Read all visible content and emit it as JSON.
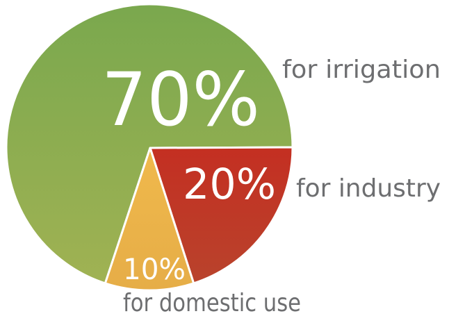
{
  "chart_data": {
    "type": "pie",
    "slices": [
      {
        "value": 70,
        "value_label": "70%",
        "label": "for irrigation",
        "color": "#85ab50"
      },
      {
        "value": 20,
        "value_label": "20%",
        "label": "for industry",
        "color": "#bf3a2b"
      },
      {
        "value": 10,
        "value_label": "10%",
        "label": "for domestic use",
        "color": "#ebb24a"
      }
    ],
    "label_color": "#6d6e70",
    "slice_border_color": "#ffffff"
  }
}
